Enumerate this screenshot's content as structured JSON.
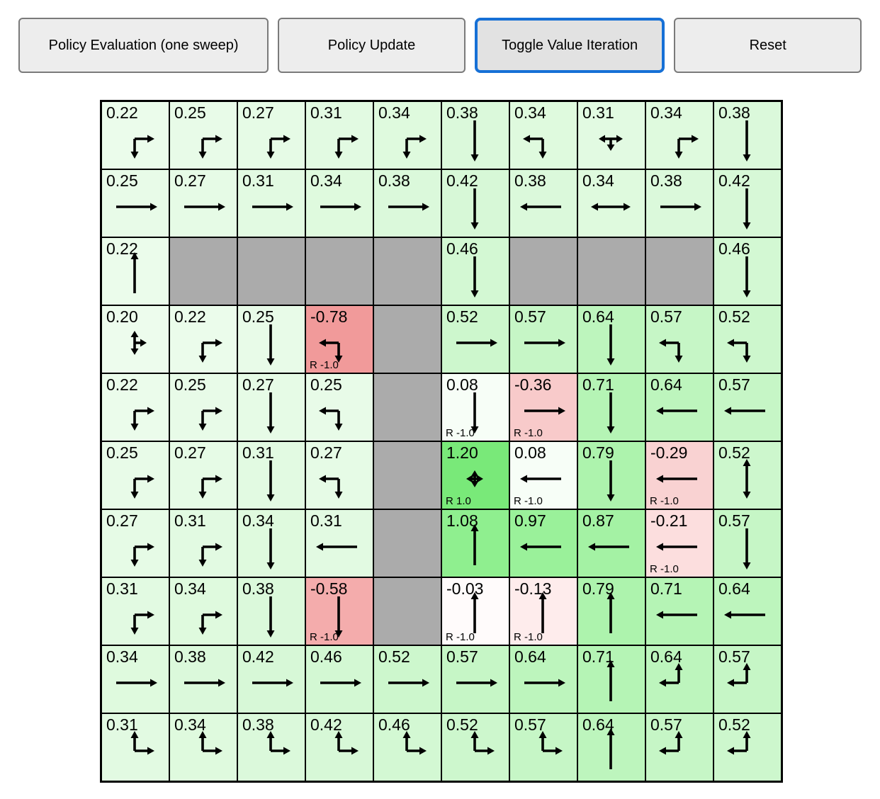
{
  "toolbar": {
    "accent_color": "#1670d6",
    "buttons": [
      {
        "label": "Policy Evaluation (one sweep)",
        "active": false
      },
      {
        "label": "Policy Update",
        "active": false
      },
      {
        "label": "Toggle Value Iteration",
        "active": true
      },
      {
        "label": "Reset",
        "active": false
      }
    ]
  },
  "colors": {
    "wall": "#ababab",
    "gridline": "#000000",
    "arrow": "#000000"
  },
  "grid": {
    "rows": 10,
    "cols": 10,
    "cells": [
      [
        {
          "type": "cell",
          "value": "0.22",
          "arrows": [
            "down",
            "right"
          ],
          "reward": null,
          "bg": "#ebfceb"
        },
        {
          "type": "cell",
          "value": "0.25",
          "arrows": [
            "down",
            "right"
          ],
          "reward": null,
          "bg": "#e8fbe8"
        },
        {
          "type": "cell",
          "value": "0.27",
          "arrows": [
            "down",
            "right"
          ],
          "reward": null,
          "bg": "#e6fbe6"
        },
        {
          "type": "cell",
          "value": "0.31",
          "arrows": [
            "down",
            "right"
          ],
          "reward": null,
          "bg": "#e2fae2"
        },
        {
          "type": "cell",
          "value": "0.34",
          "arrows": [
            "down",
            "right"
          ],
          "reward": null,
          "bg": "#dffade"
        },
        {
          "type": "cell",
          "value": "0.38",
          "arrows": [
            "down"
          ],
          "reward": null,
          "bg": "#dbf9db"
        },
        {
          "type": "cell",
          "value": "0.34",
          "arrows": [
            "down",
            "left"
          ],
          "reward": null,
          "bg": "#dffade"
        },
        {
          "type": "cell",
          "value": "0.31",
          "arrows": [
            "left",
            "right",
            "down"
          ],
          "reward": null,
          "bg": "#e2fae2"
        },
        {
          "type": "cell",
          "value": "0.34",
          "arrows": [
            "down",
            "right"
          ],
          "reward": null,
          "bg": "#dffade"
        },
        {
          "type": "cell",
          "value": "0.38",
          "arrows": [
            "down"
          ],
          "reward": null,
          "bg": "#dbf9db"
        }
      ],
      [
        {
          "type": "cell",
          "value": "0.25",
          "arrows": [
            "right"
          ],
          "reward": null,
          "bg": "#e8fbe8"
        },
        {
          "type": "cell",
          "value": "0.27",
          "arrows": [
            "right"
          ],
          "reward": null,
          "bg": "#e6fbe6"
        },
        {
          "type": "cell",
          "value": "0.31",
          "arrows": [
            "right"
          ],
          "reward": null,
          "bg": "#e2fae2"
        },
        {
          "type": "cell",
          "value": "0.34",
          "arrows": [
            "right"
          ],
          "reward": null,
          "bg": "#dffade"
        },
        {
          "type": "cell",
          "value": "0.38",
          "arrows": [
            "right"
          ],
          "reward": null,
          "bg": "#dbf9db"
        },
        {
          "type": "cell",
          "value": "0.42",
          "arrows": [
            "down"
          ],
          "reward": null,
          "bg": "#d7f8d7"
        },
        {
          "type": "cell",
          "value": "0.38",
          "arrows": [
            "left"
          ],
          "reward": null,
          "bg": "#dbf9db"
        },
        {
          "type": "cell",
          "value": "0.34",
          "arrows": [
            "left",
            "right"
          ],
          "reward": null,
          "bg": "#dffade"
        },
        {
          "type": "cell",
          "value": "0.38",
          "arrows": [
            "right"
          ],
          "reward": null,
          "bg": "#dbf9db"
        },
        {
          "type": "cell",
          "value": "0.42",
          "arrows": [
            "down"
          ],
          "reward": null,
          "bg": "#d7f8d7"
        }
      ],
      [
        {
          "type": "cell",
          "value": "0.22",
          "arrows": [
            "up"
          ],
          "reward": null,
          "bg": "#ebfceb"
        },
        {
          "type": "wall"
        },
        {
          "type": "wall"
        },
        {
          "type": "wall"
        },
        {
          "type": "wall"
        },
        {
          "type": "cell",
          "value": "0.46",
          "arrows": [
            "down"
          ],
          "reward": null,
          "bg": "#d3f8d3"
        },
        {
          "type": "wall"
        },
        {
          "type": "wall"
        },
        {
          "type": "wall"
        },
        {
          "type": "cell",
          "value": "0.46",
          "arrows": [
            "down"
          ],
          "reward": null,
          "bg": "#d3f8d3"
        }
      ],
      [
        {
          "type": "cell",
          "value": "0.20",
          "arrows": [
            "up",
            "down",
            "right"
          ],
          "reward": null,
          "bg": "#edfced"
        },
        {
          "type": "cell",
          "value": "0.22",
          "arrows": [
            "down",
            "right"
          ],
          "reward": null,
          "bg": "#ebfceb"
        },
        {
          "type": "cell",
          "value": "0.25",
          "arrows": [
            "down"
          ],
          "reward": null,
          "bg": "#e8fbe8"
        },
        {
          "type": "cell",
          "value": "-0.78",
          "arrows": [
            "left",
            "down"
          ],
          "reward": "R -1.0",
          "bg": "#f19a9a"
        },
        {
          "type": "wall"
        },
        {
          "type": "cell",
          "value": "0.52",
          "arrows": [
            "right"
          ],
          "reward": null,
          "bg": "#cdf7cd"
        },
        {
          "type": "cell",
          "value": "0.57",
          "arrows": [
            "right"
          ],
          "reward": null,
          "bg": "#c6f6c6"
        },
        {
          "type": "cell",
          "value": "0.64",
          "arrows": [
            "down"
          ],
          "reward": null,
          "bg": "#bdf5bd"
        },
        {
          "type": "cell",
          "value": "0.57",
          "arrows": [
            "left",
            "down"
          ],
          "reward": null,
          "bg": "#c6f6c6"
        },
        {
          "type": "cell",
          "value": "0.52",
          "arrows": [
            "left",
            "down"
          ],
          "reward": null,
          "bg": "#cdf7cd"
        }
      ],
      [
        {
          "type": "cell",
          "value": "0.22",
          "arrows": [
            "down",
            "right"
          ],
          "reward": null,
          "bg": "#ebfceb"
        },
        {
          "type": "cell",
          "value": "0.25",
          "arrows": [
            "down",
            "right"
          ],
          "reward": null,
          "bg": "#e8fbe8"
        },
        {
          "type": "cell",
          "value": "0.27",
          "arrows": [
            "down"
          ],
          "reward": null,
          "bg": "#e6fbe6"
        },
        {
          "type": "cell",
          "value": "0.25",
          "arrows": [
            "left",
            "down"
          ],
          "reward": null,
          "bg": "#e8fbe8"
        },
        {
          "type": "wall"
        },
        {
          "type": "cell",
          "value": "0.08",
          "arrows": [
            "down"
          ],
          "reward": "R -1.0",
          "bg": "#f7fef7"
        },
        {
          "type": "cell",
          "value": "-0.36",
          "arrows": [
            "right"
          ],
          "reward": "R -1.0",
          "bg": "#f8caca"
        },
        {
          "type": "cell",
          "value": "0.71",
          "arrows": [
            "down"
          ],
          "reward": null,
          "bg": "#b5f4b5"
        },
        {
          "type": "cell",
          "value": "0.64",
          "arrows": [
            "left"
          ],
          "reward": null,
          "bg": "#bdf5bd"
        },
        {
          "type": "cell",
          "value": "0.57",
          "arrows": [
            "left"
          ],
          "reward": null,
          "bg": "#c6f6c6"
        }
      ],
      [
        {
          "type": "cell",
          "value": "0.25",
          "arrows": [
            "down",
            "right"
          ],
          "reward": null,
          "bg": "#e8fbe8"
        },
        {
          "type": "cell",
          "value": "0.27",
          "arrows": [
            "down",
            "right"
          ],
          "reward": null,
          "bg": "#e6fbe6"
        },
        {
          "type": "cell",
          "value": "0.31",
          "arrows": [
            "down"
          ],
          "reward": null,
          "bg": "#e2fae2"
        },
        {
          "type": "cell",
          "value": "0.27",
          "arrows": [
            "left",
            "down"
          ],
          "reward": null,
          "bg": "#e6fbe6"
        },
        {
          "type": "wall"
        },
        {
          "type": "cell",
          "value": "1.20",
          "arrows": [
            "up",
            "down",
            "left",
            "right"
          ],
          "reward": "R 1.0",
          "bg": "#79e979"
        },
        {
          "type": "cell",
          "value": "0.08",
          "arrows": [
            "left"
          ],
          "reward": "R -1.0",
          "bg": "#f7fef7"
        },
        {
          "type": "cell",
          "value": "0.79",
          "arrows": [
            "down"
          ],
          "reward": null,
          "bg": "#adf3ad"
        },
        {
          "type": "cell",
          "value": "-0.29",
          "arrows": [
            "left"
          ],
          "reward": "R -1.0",
          "bg": "#f9d2d2"
        },
        {
          "type": "cell",
          "value": "0.52",
          "arrows": [
            "up",
            "down"
          ],
          "reward": null,
          "bg": "#cdf7cd"
        }
      ],
      [
        {
          "type": "cell",
          "value": "0.27",
          "arrows": [
            "down",
            "right"
          ],
          "reward": null,
          "bg": "#e6fbe6"
        },
        {
          "type": "cell",
          "value": "0.31",
          "arrows": [
            "down",
            "right"
          ],
          "reward": null,
          "bg": "#e2fae2"
        },
        {
          "type": "cell",
          "value": "0.34",
          "arrows": [
            "down"
          ],
          "reward": null,
          "bg": "#dffade"
        },
        {
          "type": "cell",
          "value": "0.31",
          "arrows": [
            "left"
          ],
          "reward": null,
          "bg": "#e2fae2"
        },
        {
          "type": "wall"
        },
        {
          "type": "cell",
          "value": "1.08",
          "arrows": [
            "up"
          ],
          "reward": null,
          "bg": "#8fef8f"
        },
        {
          "type": "cell",
          "value": "0.97",
          "arrows": [
            "left"
          ],
          "reward": null,
          "bg": "#9af19a"
        },
        {
          "type": "cell",
          "value": "0.87",
          "arrows": [
            "left"
          ],
          "reward": null,
          "bg": "#a4f2a4"
        },
        {
          "type": "cell",
          "value": "-0.21",
          "arrows": [
            "left"
          ],
          "reward": "R -1.0",
          "bg": "#fcdede"
        },
        {
          "type": "cell",
          "value": "0.57",
          "arrows": [
            "down"
          ],
          "reward": null,
          "bg": "#c6f6c6"
        }
      ],
      [
        {
          "type": "cell",
          "value": "0.31",
          "arrows": [
            "down",
            "right"
          ],
          "reward": null,
          "bg": "#e2fae2"
        },
        {
          "type": "cell",
          "value": "0.34",
          "arrows": [
            "down",
            "right"
          ],
          "reward": null,
          "bg": "#dffade"
        },
        {
          "type": "cell",
          "value": "0.38",
          "arrows": [
            "down"
          ],
          "reward": null,
          "bg": "#dbf9db"
        },
        {
          "type": "cell",
          "value": "-0.58",
          "arrows": [
            "down"
          ],
          "reward": "R -1.0",
          "bg": "#f4acac"
        },
        {
          "type": "wall"
        },
        {
          "type": "cell",
          "value": "-0.03",
          "arrows": [
            "up"
          ],
          "reward": "R -1.0",
          "bg": "#fffbfb"
        },
        {
          "type": "cell",
          "value": "-0.13",
          "arrows": [
            "up"
          ],
          "reward": "R -1.0",
          "bg": "#feecec"
        },
        {
          "type": "cell",
          "value": "0.79",
          "arrows": [
            "up"
          ],
          "reward": null,
          "bg": "#adf3ad"
        },
        {
          "type": "cell",
          "value": "0.71",
          "arrows": [
            "left"
          ],
          "reward": null,
          "bg": "#b5f4b5"
        },
        {
          "type": "cell",
          "value": "0.64",
          "arrows": [
            "left"
          ],
          "reward": null,
          "bg": "#bdf5bd"
        }
      ],
      [
        {
          "type": "cell",
          "value": "0.34",
          "arrows": [
            "right"
          ],
          "reward": null,
          "bg": "#dffade"
        },
        {
          "type": "cell",
          "value": "0.38",
          "arrows": [
            "right"
          ],
          "reward": null,
          "bg": "#dbf9db"
        },
        {
          "type": "cell",
          "value": "0.42",
          "arrows": [
            "right"
          ],
          "reward": null,
          "bg": "#d7f8d7"
        },
        {
          "type": "cell",
          "value": "0.46",
          "arrows": [
            "right"
          ],
          "reward": null,
          "bg": "#d3f8d3"
        },
        {
          "type": "cell",
          "value": "0.52",
          "arrows": [
            "right"
          ],
          "reward": null,
          "bg": "#cdf7cd"
        },
        {
          "type": "cell",
          "value": "0.57",
          "arrows": [
            "right"
          ],
          "reward": null,
          "bg": "#c6f6c6"
        },
        {
          "type": "cell",
          "value": "0.64",
          "arrows": [
            "right"
          ],
          "reward": null,
          "bg": "#bdf5bd"
        },
        {
          "type": "cell",
          "value": "0.71",
          "arrows": [
            "up"
          ],
          "reward": null,
          "bg": "#b5f4b5"
        },
        {
          "type": "cell",
          "value": "0.64",
          "arrows": [
            "up",
            "left"
          ],
          "reward": null,
          "bg": "#bdf5bd"
        },
        {
          "type": "cell",
          "value": "0.57",
          "arrows": [
            "up",
            "left"
          ],
          "reward": null,
          "bg": "#c6f6c6"
        }
      ],
      [
        {
          "type": "cell",
          "value": "0.31",
          "arrows": [
            "up",
            "right"
          ],
          "reward": null,
          "bg": "#e2fae2"
        },
        {
          "type": "cell",
          "value": "0.34",
          "arrows": [
            "up",
            "right"
          ],
          "reward": null,
          "bg": "#dffade"
        },
        {
          "type": "cell",
          "value": "0.38",
          "arrows": [
            "up",
            "right"
          ],
          "reward": null,
          "bg": "#dbf9db"
        },
        {
          "type": "cell",
          "value": "0.42",
          "arrows": [
            "up",
            "right"
          ],
          "reward": null,
          "bg": "#d7f8d7"
        },
        {
          "type": "cell",
          "value": "0.46",
          "arrows": [
            "up",
            "right"
          ],
          "reward": null,
          "bg": "#d3f8d3"
        },
        {
          "type": "cell",
          "value": "0.52",
          "arrows": [
            "up",
            "right"
          ],
          "reward": null,
          "bg": "#cdf7cd"
        },
        {
          "type": "cell",
          "value": "0.57",
          "arrows": [
            "up",
            "right"
          ],
          "reward": null,
          "bg": "#c6f6c6"
        },
        {
          "type": "cell",
          "value": "0.64",
          "arrows": [
            "up"
          ],
          "reward": null,
          "bg": "#bdf5bd"
        },
        {
          "type": "cell",
          "value": "0.57",
          "arrows": [
            "up",
            "left"
          ],
          "reward": null,
          "bg": "#c6f6c6"
        },
        {
          "type": "cell",
          "value": "0.52",
          "arrows": [
            "up",
            "left"
          ],
          "reward": null,
          "bg": "#cdf7cd"
        }
      ]
    ]
  }
}
